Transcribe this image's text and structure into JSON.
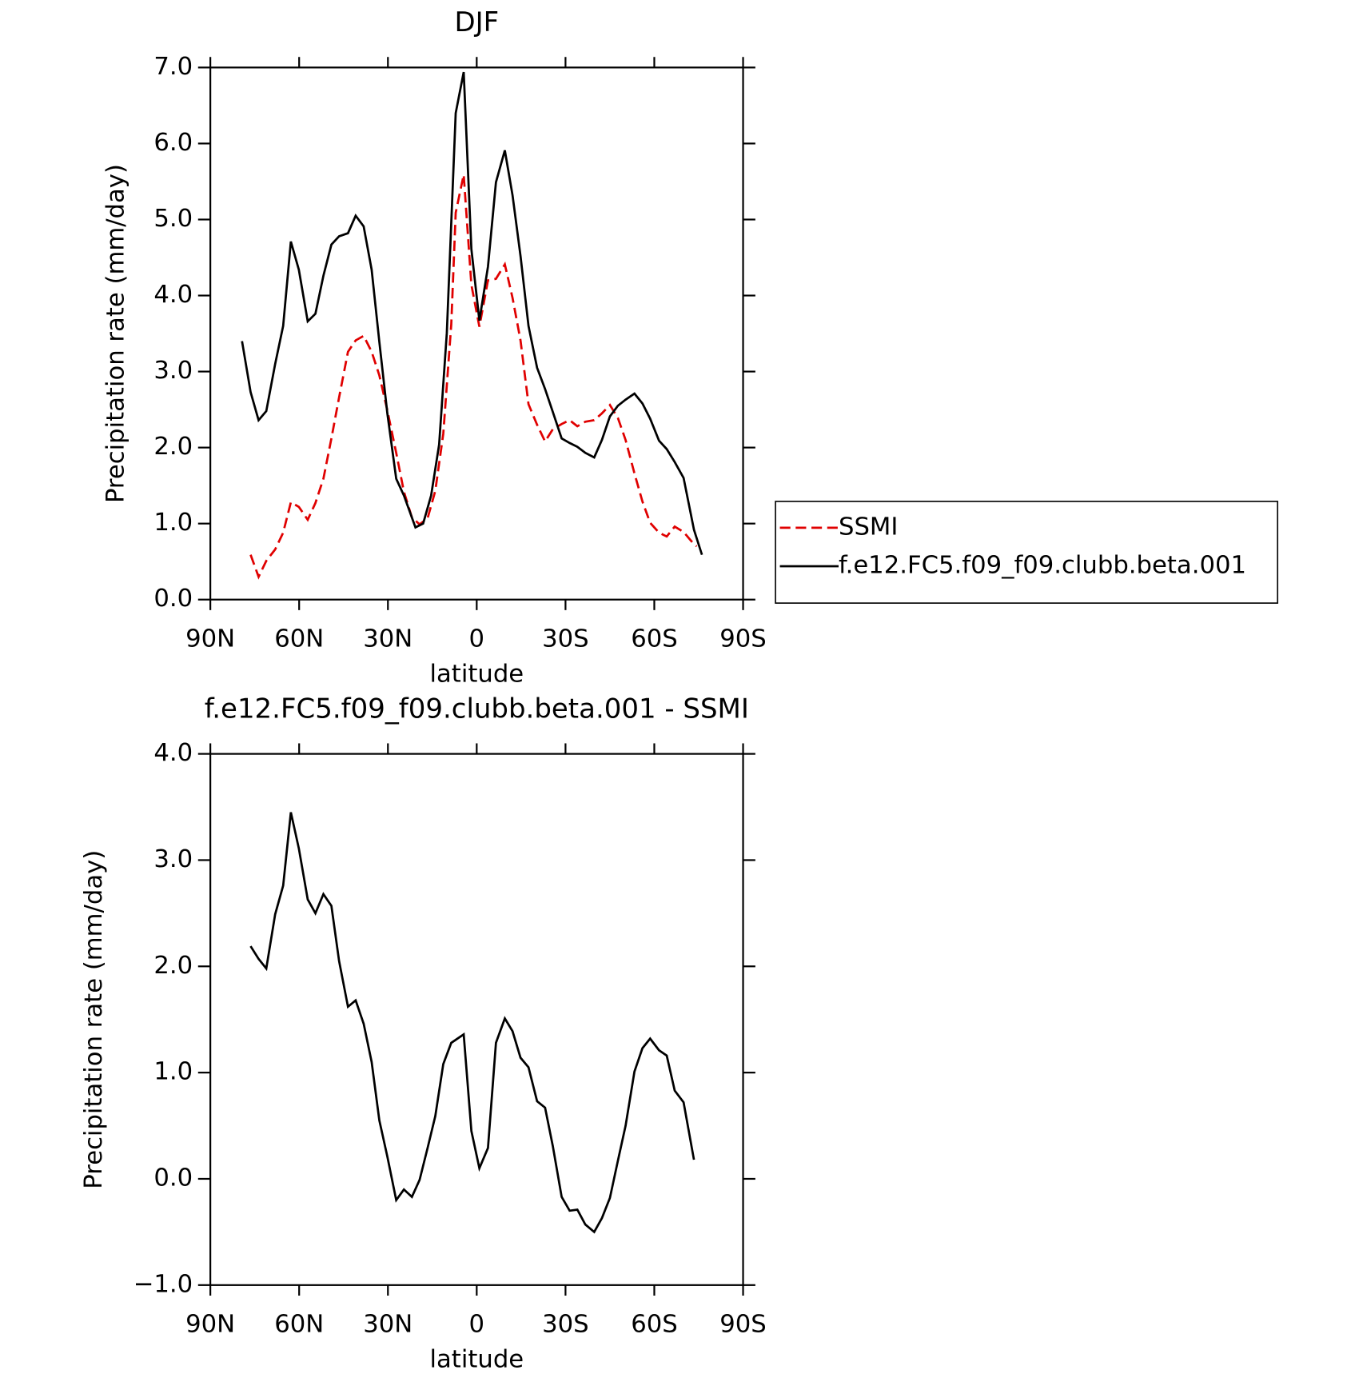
{
  "chart_data": [
    {
      "type": "line",
      "title": "DJF",
      "xlabel": "latitude",
      "ylabel": "Precipitation rate (mm/day)",
      "xlim": [
        90,
        -90
      ],
      "xticks": [
        {
          "value": 90,
          "label": "90N"
        },
        {
          "value": 60,
          "label": "60N"
        },
        {
          "value": 30,
          "label": "30N"
        },
        0,
        {
          "value": -30,
          "label": "30S"
        },
        {
          "value": -60,
          "label": "60S"
        },
        {
          "value": -90,
          "label": "90S"
        }
      ],
      "ylim": [
        0,
        7
      ],
      "yticks": [
        {
          "value": 0,
          "label": "0.0"
        },
        {
          "value": 1,
          "label": "1.0"
        },
        {
          "value": 2,
          "label": "2.0"
        },
        {
          "value": 3,
          "label": "3.0"
        },
        {
          "value": 4,
          "label": "4.0"
        },
        {
          "value": 5,
          "label": "5.0"
        },
        {
          "value": 6,
          "label": "6.0"
        },
        {
          "value": 7,
          "label": "7.0"
        }
      ],
      "legend": "right",
      "series": [
        {
          "name": "SSMI",
          "color": "#e00000",
          "dashed": true,
          "x": [
            76.4,
            73.7,
            71.1,
            68.1,
            65.4,
            62.8,
            60.1,
            57.1,
            54.5,
            51.8,
            49.1,
            46.5,
            43.5,
            40.9,
            38.2,
            35.5,
            32.9,
            30.2,
            27.2,
            24.6,
            21.9,
            19.3,
            16.6,
            14.0,
            11.3,
            8.6,
            7.1,
            4.4,
            1.8,
            -0.9,
            -3.8,
            -6.5,
            -9.5,
            -12.1,
            -14.8,
            -17.5,
            -20.4,
            -23.1,
            -25.7,
            -28.7,
            -31.4,
            -34.0,
            -36.7,
            -39.7,
            -42.3,
            -45.0,
            -47.7,
            -50.3,
            -53.3,
            -56.0,
            -58.6,
            -61.6,
            -64.2,
            -66.9,
            -69.9,
            -72.5,
            -74.3
          ],
          "values": [
            0.59,
            0.3,
            0.51,
            0.66,
            0.88,
            1.28,
            1.22,
            1.05,
            1.27,
            1.59,
            2.12,
            2.66,
            3.26,
            3.41,
            3.47,
            3.26,
            2.95,
            2.49,
            1.93,
            1.42,
            1.08,
            0.99,
            1.07,
            1.43,
            2.18,
            3.62,
            5.09,
            5.59,
            4.14,
            3.59,
            4.2,
            4.22,
            4.41,
            3.97,
            3.41,
            2.57,
            2.3,
            2.08,
            2.24,
            2.31,
            2.36,
            2.28,
            2.34,
            2.36,
            2.45,
            2.56,
            2.39,
            2.1,
            1.66,
            1.29,
            1.01,
            0.88,
            0.83,
            0.96,
            0.89,
            0.77,
            0.7
          ]
        },
        {
          "name": "f.e12.FC5.f09_f09.clubb.beta.001",
          "color": "#000000",
          "dashed": false,
          "x": [
            79.3,
            76.4,
            73.7,
            71.1,
            68.1,
            65.4,
            62.8,
            60.1,
            57.1,
            54.5,
            51.8,
            49.1,
            46.5,
            43.5,
            40.9,
            38.2,
            35.5,
            32.9,
            30.2,
            27.2,
            24.6,
            20.7,
            18.1,
            15.4,
            12.7,
            10.1,
            7.1,
            4.4,
            1.8,
            -0.9,
            -3.8,
            -6.5,
            -9.5,
            -12.1,
            -14.8,
            -17.5,
            -20.4,
            -23.1,
            -25.7,
            -28.7,
            -31.4,
            -34.0,
            -36.7,
            -39.7,
            -42.3,
            -45.0,
            -47.7,
            -50.3,
            -53.3,
            -56.0,
            -58.6,
            -61.6,
            -64.2,
            -66.9,
            -69.9,
            -73.4,
            -76.1
          ],
          "values": [
            3.4,
            2.73,
            2.36,
            2.48,
            3.1,
            3.6,
            4.71,
            4.34,
            3.66,
            3.76,
            4.26,
            4.67,
            4.78,
            4.82,
            5.05,
            4.91,
            4.34,
            3.39,
            2.45,
            1.59,
            1.37,
            0.95,
            1.0,
            1.37,
            2.04,
            3.51,
            6.4,
            6.94,
            4.61,
            3.67,
            4.38,
            5.49,
            5.91,
            5.32,
            4.52,
            3.6,
            3.05,
            2.77,
            2.47,
            2.12,
            2.06,
            2.01,
            1.93,
            1.87,
            2.1,
            2.41,
            2.55,
            2.63,
            2.71,
            2.58,
            2.38,
            2.09,
            1.98,
            1.81,
            1.6,
            0.92,
            0.59
          ]
        }
      ]
    },
    {
      "type": "line",
      "title": "f.e12.FC5.f09_f09.clubb.beta.001 - SSMI",
      "xlabel": "latitude",
      "ylabel": "Precipitation rate (mm/day)",
      "xlim": [
        90,
        -90
      ],
      "xticks": [
        {
          "value": 90,
          "label": "90N"
        },
        {
          "value": 60,
          "label": "60N"
        },
        {
          "value": 30,
          "label": "30N"
        },
        0,
        {
          "value": -30,
          "label": "30S"
        },
        {
          "value": -60,
          "label": "60S"
        },
        {
          "value": -90,
          "label": "90S"
        }
      ],
      "ylim": [
        -1,
        4
      ],
      "yticks": [
        {
          "value": -1,
          "label": "−1.0"
        },
        {
          "value": 0,
          "label": "0.0"
        },
        {
          "value": 1,
          "label": "1.0"
        },
        {
          "value": 2,
          "label": "2.0"
        },
        {
          "value": 3,
          "label": "3.0"
        },
        {
          "value": 4,
          "label": "4.0"
        }
      ],
      "series": [
        {
          "color": "#000000",
          "dashed": false,
          "x": [
            76.4,
            73.7,
            71.1,
            68.1,
            65.4,
            62.8,
            60.1,
            57.1,
            54.5,
            51.8,
            49.1,
            46.5,
            43.5,
            40.9,
            38.2,
            35.5,
            32.9,
            30.2,
            27.2,
            24.6,
            21.9,
            19.3,
            16.6,
            14.0,
            11.3,
            8.6,
            4.4,
            1.8,
            -0.9,
            -3.8,
            -6.5,
            -9.5,
            -12.1,
            -14.8,
            -17.5,
            -20.4,
            -23.1,
            -25.7,
            -28.7,
            -31.4,
            -34.0,
            -36.7,
            -39.7,
            -42.3,
            -45.0,
            -47.7,
            -50.3,
            -53.3,
            -56.0,
            -58.6,
            -61.6,
            -64.2,
            -66.9,
            -69.9,
            -73.4
          ],
          "values": [
            2.19,
            2.07,
            1.98,
            2.49,
            2.76,
            3.45,
            3.11,
            2.63,
            2.5,
            2.68,
            2.57,
            2.05,
            1.62,
            1.68,
            1.46,
            1.1,
            0.55,
            0.21,
            -0.2,
            -0.1,
            -0.17,
            -0.01,
            0.29,
            0.59,
            1.08,
            1.28,
            1.36,
            0.45,
            0.1,
            0.29,
            1.28,
            1.51,
            1.39,
            1.14,
            1.05,
            0.73,
            0.67,
            0.31,
            -0.17,
            -0.3,
            -0.29,
            -0.43,
            -0.5,
            -0.37,
            -0.18,
            0.17,
            0.5,
            1.01,
            1.23,
            1.32,
            1.21,
            1.16,
            0.83,
            0.72,
            0.18
          ]
        }
      ]
    }
  ]
}
